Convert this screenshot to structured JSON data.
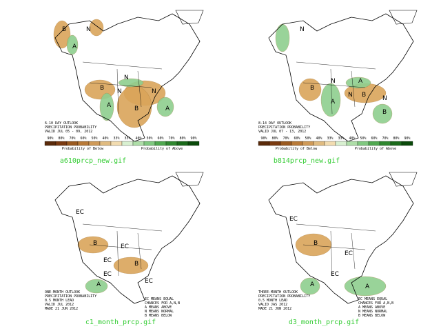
{
  "panels": [
    {
      "caption": "a610prcp_new.gif",
      "title_lines": [
        "6-10 DAY OUTLOOK",
        "PRECIPITATION PROBABILITY",
        "VALID JUL 05 - 09, 2012"
      ],
      "regions": [
        "B",
        "N",
        "A",
        "B",
        "N",
        "N",
        "A",
        "B",
        "N",
        "A"
      ],
      "legend": {
        "ticks": [
          "90%",
          "80%",
          "70%",
          "60%",
          "50%",
          "40%",
          "33%",
          "33%",
          "40%",
          "50%",
          "60%",
          "70%",
          "80%",
          "90%"
        ],
        "below_label": "Probability of Below",
        "above_label": "Probability of Above"
      }
    },
    {
      "caption": "b814prcp_new.gif",
      "title_lines": [
        "8-14 DAY OUTLOOK",
        "PRECIPITATION PROBABILITY",
        "VALID JUL 07 - 13, 2012"
      ],
      "regions": [
        "N",
        "B",
        "N",
        "A",
        "N",
        "B",
        "A",
        "N",
        "B"
      ],
      "legend": {
        "ticks": [
          "90%",
          "80%",
          "70%",
          "60%",
          "50%",
          "40%",
          "33%",
          "33%",
          "40%",
          "50%",
          "60%",
          "70%",
          "80%",
          "90%"
        ],
        "below_label": "Probability of Below",
        "above_label": "Probability of Above"
      }
    },
    {
      "caption": "c1_month_prcp.gif",
      "title_lines": [
        "ONE-MONTH OUTLOOK",
        "PRECIPITATION PROBABILITY",
        "0.5 MONTH LEAD",
        "VALID JUL 2012",
        "MADE 21 JUN 2012"
      ],
      "regions": [
        "EC",
        "B",
        "EC",
        "EC",
        "B",
        "EC",
        "A",
        "EC"
      ],
      "key": [
        "EC MEANS EQUAL",
        "CHANCES FOR A,N,B",
        "A MEANS ABOVE",
        "N MEANS NORMAL",
        "B MEANS BELOW"
      ]
    },
    {
      "caption": "d3_month_prcp.gif",
      "title_lines": [
        "THREE-MONTH OUTLOOK",
        "PRECIPITATION PROBABILITY",
        "0.5 MONTH LEAD",
        "VALID JAS 2012",
        "MADE 21 JUN 2012"
      ],
      "regions": [
        "EC",
        "B",
        "EC",
        "A",
        "A",
        "EC"
      ],
      "key": [
        "EC MEANS EQUAL",
        "CHANCES FOR A,N,B",
        "A MEANS ABOVE",
        "N MEANS NORMAL",
        "B MEANS BELOW"
      ]
    }
  ]
}
